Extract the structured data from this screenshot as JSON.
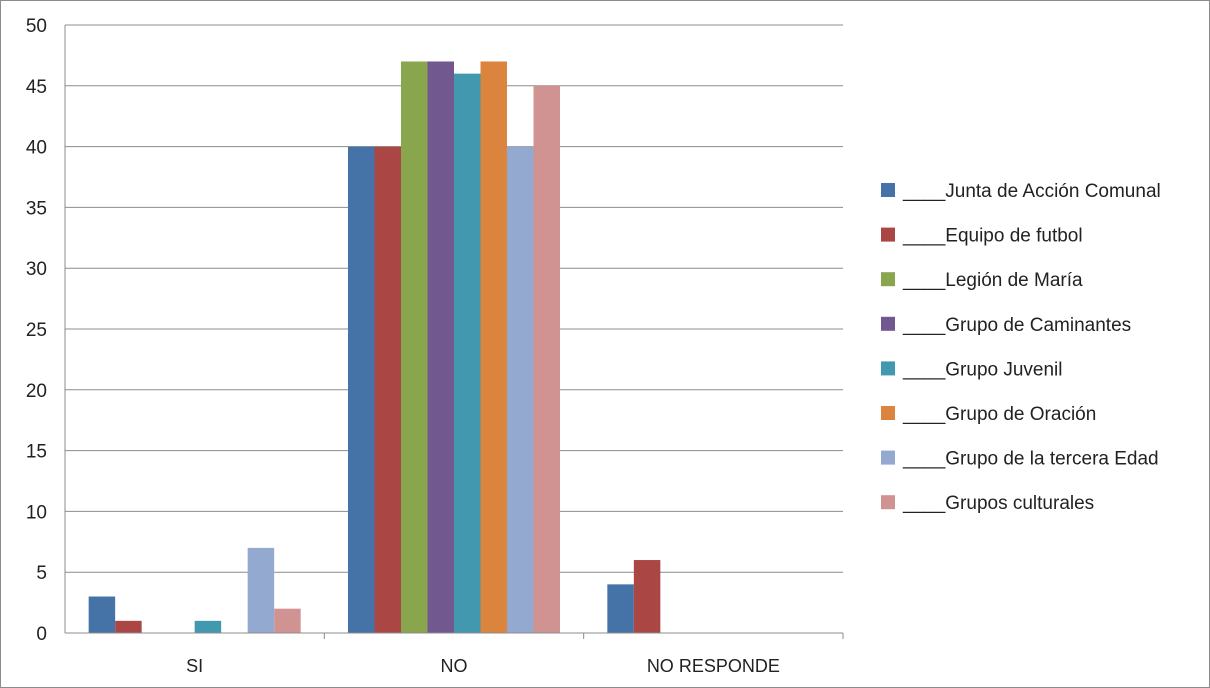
{
  "chart_data": {
    "type": "bar",
    "categories": [
      "SI",
      "NO",
      "NO RESPONDE"
    ],
    "y_ticks": [
      "0",
      "5",
      "10",
      "15",
      "20",
      "25",
      "30",
      "35",
      "40",
      "45",
      "50"
    ],
    "ylim": [
      0,
      50
    ],
    "y_step": 5,
    "grid": true,
    "legend_position": "right",
    "series": [
      {
        "name": "____Junta de Acción Comunal",
        "color": "#4572A7",
        "values": [
          3,
          40,
          4
        ]
      },
      {
        "name": "____Equipo de futbol",
        "color": "#AA4643",
        "values": [
          1,
          40,
          6
        ]
      },
      {
        "name": "____Legión de María",
        "color": "#89A54E",
        "values": [
          0,
          47,
          0
        ]
      },
      {
        "name": "____Grupo de Caminantes",
        "color": "#71588F",
        "values": [
          0,
          47,
          0
        ]
      },
      {
        "name": "____Grupo Juvenil",
        "color": "#4198AF",
        "values": [
          1,
          46,
          0
        ]
      },
      {
        "name": "____Grupo de Oración",
        "color": "#DB843D",
        "values": [
          0,
          47,
          0
        ]
      },
      {
        "name": "____Grupo de la tercera Edad",
        "color": "#93A9CF",
        "values": [
          7,
          40,
          0
        ]
      },
      {
        "name": "____Grupos culturales",
        "color": "#D19392",
        "values": [
          2,
          45,
          0
        ]
      }
    ]
  }
}
